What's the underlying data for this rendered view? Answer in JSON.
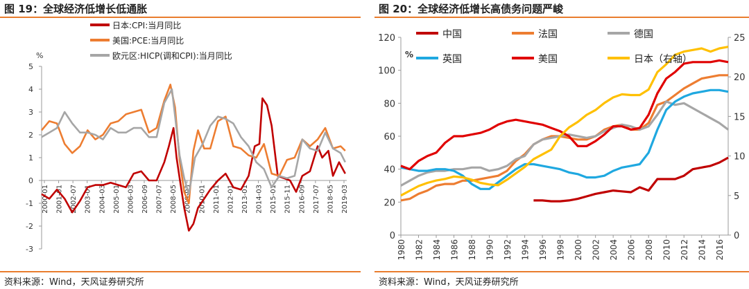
{
  "left": {
    "title": "图 19：全球经济低增长低通胀",
    "source": "资料来源：Wind，天风证券研究所",
    "chart_data": {
      "type": "line",
      "ylabel": "%",
      "ylim": [
        -3,
        5
      ],
      "yticks": [
        -3,
        -2,
        -1,
        0,
        1,
        2,
        3,
        4,
        5
      ],
      "xlim": [
        2000.0,
        2019.9
      ],
      "xtick_labels": [
        "2000-01",
        "2001-01",
        "2002-07",
        "2003-01",
        "2004-03",
        "2005-01",
        "2006-03",
        "2006-09",
        "2007-07",
        "2008-05",
        "2009-03",
        "2010-01",
        "2011-01",
        "2012-01",
        "2013-01",
        "2014-03",
        "2015-01",
        "2015-11",
        "2016-09",
        "2017-07",
        "2018-05",
        "2019-03"
      ],
      "legend_position": "top-center",
      "series": [
        {
          "name": "日本:CPI:当月同比",
          "color": "#c00000",
          "x": [
            2000.0,
            2000.5,
            2001.0,
            2001.5,
            2002.0,
            2002.5,
            2003.0,
            2003.5,
            2004.0,
            2004.5,
            2005.0,
            2005.5,
            2006.0,
            2006.5,
            2007.0,
            2007.5,
            2008.0,
            2008.3,
            2008.6,
            2008.8,
            2009.0,
            2009.3,
            2009.6,
            2009.9,
            2010.2,
            2010.6,
            2011.0,
            2011.5,
            2012.0,
            2012.5,
            2013.0,
            2013.5,
            2013.9,
            2014.2,
            2014.4,
            2014.7,
            2015.0,
            2015.4,
            2015.8,
            2016.2,
            2016.6,
            2017.0,
            2017.5,
            2018.0,
            2018.3,
            2018.7,
            2019.0,
            2019.4,
            2019.8
          ],
          "values": [
            -0.6,
            -0.8,
            -0.4,
            -0.8,
            -1.4,
            -0.9,
            -0.3,
            -0.2,
            -0.2,
            -0.1,
            -0.2,
            -0.3,
            0.3,
            0.4,
            0.0,
            0.0,
            0.8,
            1.5,
            2.3,
            1.0,
            0.1,
            -1.2,
            -2.2,
            -1.9,
            -1.2,
            -0.8,
            -0.4,
            0.0,
            0.3,
            -0.3,
            -0.4,
            0.2,
            1.5,
            1.6,
            3.6,
            3.3,
            2.4,
            0.2,
            0.1,
            0.0,
            -0.5,
            0.2,
            0.4,
            1.5,
            1.0,
            1.3,
            0.2,
            0.8,
            0.3
          ]
        },
        {
          "name": "美国:PCE:当月同比",
          "color": "#ed7d31",
          "x": [
            2000.0,
            2000.5,
            2001.0,
            2001.5,
            2002.0,
            2002.5,
            2003.0,
            2003.5,
            2004.0,
            2004.5,
            2005.0,
            2005.5,
            2006.0,
            2006.5,
            2007.0,
            2007.5,
            2008.0,
            2008.4,
            2008.7,
            2009.0,
            2009.3,
            2009.6,
            2009.9,
            2010.2,
            2010.6,
            2011.0,
            2011.5,
            2012.0,
            2012.5,
            2013.0,
            2013.5,
            2014.0,
            2014.5,
            2015.0,
            2015.5,
            2016.0,
            2016.5,
            2017.0,
            2017.5,
            2018.0,
            2018.5,
            2019.0,
            2019.5,
            2019.8
          ],
          "values": [
            2.2,
            2.6,
            2.5,
            1.6,
            1.2,
            1.5,
            2.2,
            1.8,
            2.0,
            2.5,
            2.6,
            2.9,
            3.0,
            3.1,
            2.1,
            2.3,
            3.5,
            4.2,
            3.2,
            0.9,
            -0.5,
            -1.0,
            1.3,
            2.2,
            1.4,
            1.4,
            2.6,
            2.8,
            1.5,
            1.4,
            1.1,
            1.0,
            1.6,
            0.3,
            0.2,
            0.9,
            1.0,
            1.8,
            1.5,
            1.8,
            2.3,
            1.4,
            1.5,
            1.3
          ]
        },
        {
          "name": "欧元区:HICP(调和CPI):当月同比",
          "color": "#a6a6a6",
          "x": [
            2000.0,
            2000.5,
            2001.0,
            2001.5,
            2002.0,
            2002.5,
            2003.0,
            2003.5,
            2004.0,
            2004.5,
            2005.0,
            2005.5,
            2006.0,
            2006.5,
            2007.0,
            2007.5,
            2008.0,
            2008.5,
            2009.0,
            2009.3,
            2009.6,
            2010.0,
            2010.5,
            2011.0,
            2011.5,
            2012.0,
            2012.5,
            2013.0,
            2013.5,
            2014.0,
            2014.5,
            2015.0,
            2015.5,
            2016.0,
            2016.5,
            2017.0,
            2017.5,
            2018.0,
            2018.5,
            2019.0,
            2019.5,
            2019.8
          ],
          "values": [
            1.9,
            2.1,
            2.3,
            3.0,
            2.5,
            2.1,
            2.1,
            2.0,
            1.8,
            2.3,
            2.1,
            2.1,
            2.3,
            2.3,
            1.9,
            1.9,
            3.4,
            4.0,
            1.1,
            0.1,
            -0.6,
            1.0,
            1.6,
            2.4,
            2.8,
            2.7,
            2.5,
            1.9,
            1.5,
            0.8,
            0.5,
            -0.3,
            0.2,
            0.1,
            0.2,
            1.8,
            1.4,
            1.3,
            2.1,
            1.4,
            1.2,
            0.8
          ]
        }
      ]
    }
  },
  "right": {
    "title": "图 20：全球经济低增长高债务问题严峻",
    "source": "资料来源：Wind，天风证券研究所",
    "chart_data": {
      "type": "line",
      "ylabel": "%",
      "ylim": [
        0,
        120
      ],
      "yticks": [
        0,
        20,
        40,
        60,
        80,
        100,
        120
      ],
      "y2lim": [
        0,
        25
      ],
      "y2ticks": [
        0,
        5,
        10,
        15,
        20,
        25
      ],
      "xlim": [
        1980,
        2017
      ],
      "xticks": [
        1980,
        1982,
        1984,
        1986,
        1988,
        1990,
        1992,
        1994,
        1996,
        1998,
        2000,
        2002,
        2004,
        2006,
        2008,
        2010,
        2012,
        2014,
        2016
      ],
      "legend_position": "top",
      "series": [
        {
          "name": "中国",
          "color": "#c00000",
          "axis": "left",
          "x": [
            1995,
            1996,
            1997,
            1998,
            1999,
            2000,
            2001,
            2002,
            2003,
            2004,
            2005,
            2006,
            2007,
            2008,
            2009,
            2010,
            2011,
            2012,
            2013,
            2014,
            2015,
            2016,
            2017
          ],
          "values": [
            21,
            21,
            20.5,
            20.5,
            21,
            22,
            23.5,
            25,
            26,
            27,
            26.5,
            26,
            29,
            27,
            34,
            34,
            34,
            36,
            40,
            41,
            42,
            44,
            47
          ]
        },
        {
          "name": "法国",
          "color": "#ed7d31",
          "axis": "left",
          "x": [
            1980,
            1981,
            1982,
            1983,
            1984,
            1985,
            1986,
            1987,
            1988,
            1989,
            1990,
            1991,
            1992,
            1993,
            1994,
            1995,
            1996,
            1997,
            1998,
            1999,
            2000,
            2001,
            2002,
            2003,
            2004,
            2005,
            2006,
            2007,
            2008,
            2009,
            2010,
            2011,
            2012,
            2013,
            2014,
            2015,
            2016,
            2017
          ],
          "values": [
            21,
            22,
            25,
            27,
            30,
            31,
            31,
            33,
            33,
            34,
            35,
            36,
            39,
            45,
            49,
            55,
            58,
            60,
            60,
            59,
            58,
            58,
            60,
            64,
            66,
            67,
            64,
            64,
            68,
            79,
            81,
            85,
            89,
            92,
            95,
            96,
            97,
            97
          ]
        },
        {
          "name": "德国",
          "color": "#a6a6a6",
          "axis": "left",
          "x": [
            1980,
            1981,
            1982,
            1983,
            1984,
            1985,
            1986,
            1987,
            1988,
            1989,
            1990,
            1991,
            1992,
            1993,
            1994,
            1995,
            1996,
            1997,
            1998,
            1999,
            2000,
            2001,
            2002,
            2003,
            2004,
            2005,
            2006,
            2007,
            2008,
            2009,
            2010,
            2011,
            2012,
            2013,
            2014,
            2015,
            2016,
            2017
          ],
          "values": [
            30,
            33,
            36,
            38,
            39,
            39,
            40,
            40,
            41,
            41,
            39,
            40,
            42,
            46,
            48,
            55,
            58,
            59,
            60,
            61,
            60,
            59,
            60,
            63,
            65,
            67,
            66,
            64,
            66,
            73,
            81,
            79,
            80,
            77,
            74,
            71,
            68,
            64
          ]
        },
        {
          "name": "英国",
          "color": "#1fa8e0",
          "axis": "left",
          "x": [
            1980,
            1981,
            1982,
            1983,
            1984,
            1985,
            1986,
            1987,
            1988,
            1989,
            1990,
            1991,
            1992,
            1993,
            1994,
            1995,
            1996,
            1997,
            1998,
            1999,
            2000,
            2001,
            2002,
            2003,
            2004,
            2005,
            2006,
            2007,
            2008,
            2009,
            2010,
            2011,
            2012,
            2013,
            2014,
            2015,
            2016,
            2017
          ],
          "values": [
            41,
            40,
            39,
            39,
            40,
            40,
            39,
            36,
            31,
            28,
            28,
            32,
            36,
            40,
            43,
            43,
            42,
            41,
            40,
            38,
            37,
            35,
            35,
            36,
            39,
            41,
            42,
            43,
            50,
            64,
            76,
            81,
            84,
            86,
            87,
            88,
            88,
            87
          ]
        },
        {
          "name": "美国",
          "color": "#e00000",
          "axis": "left",
          "x": [
            1980,
            1981,
            1982,
            1983,
            1984,
            1985,
            1986,
            1987,
            1988,
            1989,
            1990,
            1991,
            1992,
            1993,
            1994,
            1995,
            1996,
            1997,
            1998,
            1999,
            2000,
            2001,
            2002,
            2003,
            2004,
            2005,
            2006,
            2007,
            2008,
            2009,
            2010,
            2011,
            2012,
            2013,
            2014,
            2015,
            2016,
            2017
          ],
          "values": [
            42,
            40,
            45,
            48,
            50,
            56,
            60,
            60,
            61,
            62,
            64,
            67,
            69,
            70,
            69,
            68,
            67,
            65,
            63,
            60,
            54,
            54,
            57,
            61,
            66,
            66,
            64,
            65,
            73,
            86,
            95,
            99,
            104,
            105,
            105,
            105,
            106,
            105
          ]
        },
        {
          "name": "日本（右轴）",
          "color": "#ffc000",
          "axis": "right",
          "x": [
            1980,
            1981,
            1982,
            1983,
            1984,
            1985,
            1986,
            1987,
            1988,
            1989,
            1990,
            1991,
            1992,
            1993,
            1994,
            1995,
            1996,
            1997,
            1998,
            1999,
            2000,
            2001,
            2002,
            2003,
            2004,
            2005,
            2006,
            2007,
            2008,
            2009,
            2010,
            2011,
            2012,
            2013,
            2014,
            2015,
            2016,
            2017
          ],
          "values": [
            5,
            5.6,
            6.2,
            6.6,
            6.9,
            7.1,
            7.4,
            7.3,
            7.0,
            6.6,
            6.4,
            6.3,
            7.0,
            7.8,
            8.6,
            9.6,
            10.2,
            10.8,
            12.5,
            13.6,
            14.3,
            15.2,
            15.8,
            16.7,
            17.4,
            17.8,
            17.7,
            17.7,
            18.4,
            20.6,
            21.6,
            22.8,
            23.2,
            23.4,
            23.6,
            23.2,
            23.6,
            23.8
          ]
        }
      ]
    }
  }
}
